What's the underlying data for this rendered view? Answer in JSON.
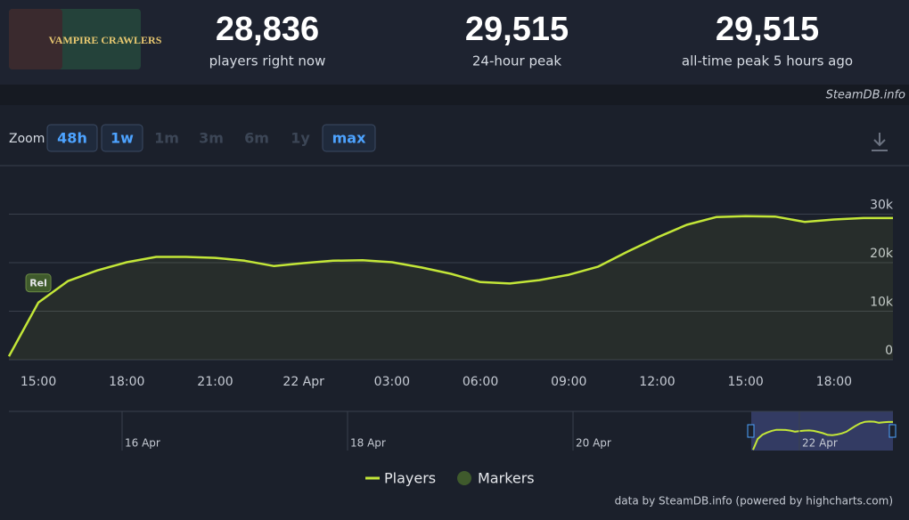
{
  "header": {
    "game_logo": "VAMPIRE CRAWLERS",
    "stats": [
      {
        "value": "28,836",
        "label": "players right now"
      },
      {
        "value": "29,515",
        "label": "24-hour peak"
      },
      {
        "value": "29,515",
        "label": "all-time peak 5 hours ago"
      }
    ],
    "site": "SteamDB.info"
  },
  "zoom": {
    "label": "Zoom",
    "buttons": [
      {
        "text": "48h",
        "active": true
      },
      {
        "text": "1w",
        "active": true
      },
      {
        "text": "1m",
        "active": false
      },
      {
        "text": "3m",
        "active": false
      },
      {
        "text": "6m",
        "active": false
      },
      {
        "text": "1y",
        "active": false
      },
      {
        "text": "max",
        "active": true
      }
    ]
  },
  "chart_data": {
    "type": "line",
    "area": true,
    "grid": true,
    "categories": [
      null,
      "15:00",
      null,
      null,
      "18:00",
      null,
      null,
      "21:00",
      null,
      null,
      "22 Apr",
      null,
      null,
      "03:00",
      null,
      null,
      "06:00",
      null,
      null,
      "09:00",
      null,
      null,
      "12:00",
      null,
      null,
      "15:00",
      null,
      null,
      "18:00",
      null,
      null
    ],
    "series": [
      {
        "name": "Players",
        "color": "#c3e638",
        "values": [
          700,
          11800,
          16200,
          18400,
          20100,
          21200,
          21200,
          21000,
          20400,
          19300,
          19900,
          20400,
          20500,
          20100,
          19000,
          17700,
          16000,
          15700,
          16400,
          17500,
          19200,
          22300,
          25200,
          27800,
          29400,
          29600,
          29500,
          28400,
          28900,
          29200,
          29200
        ]
      },
      {
        "name": "Markers",
        "color": "#3f5a2c",
        "values": [
          null,
          11800,
          null,
          null,
          null,
          null,
          null,
          null,
          null,
          null,
          null,
          null,
          null,
          null,
          null,
          null,
          null,
          null,
          null,
          null,
          null,
          null,
          null,
          null,
          null,
          null,
          null,
          null,
          null,
          null,
          null
        ],
        "value_labels": [
          null,
          "Rel",
          null,
          null,
          null,
          null,
          null,
          null,
          null,
          null,
          null,
          null,
          null,
          null,
          null,
          null,
          null,
          null,
          null,
          null,
          null,
          null,
          null,
          null,
          null,
          null,
          null,
          null,
          null,
          null,
          null
        ]
      }
    ],
    "ylim": [
      0,
      40000
    ],
    "yticks": [
      {
        "value": 0,
        "label": "0"
      },
      {
        "value": 10000,
        "label": "10k"
      },
      {
        "value": 20000,
        "label": "20k"
      },
      {
        "value": 30000,
        "label": "30k"
      }
    ]
  },
  "navigator": {
    "labels": [
      "16 Apr",
      "18 Apr",
      "20 Apr",
      "22 Apr"
    ]
  },
  "credits": "data by SteamDB.info (powered by highcharts.com)"
}
